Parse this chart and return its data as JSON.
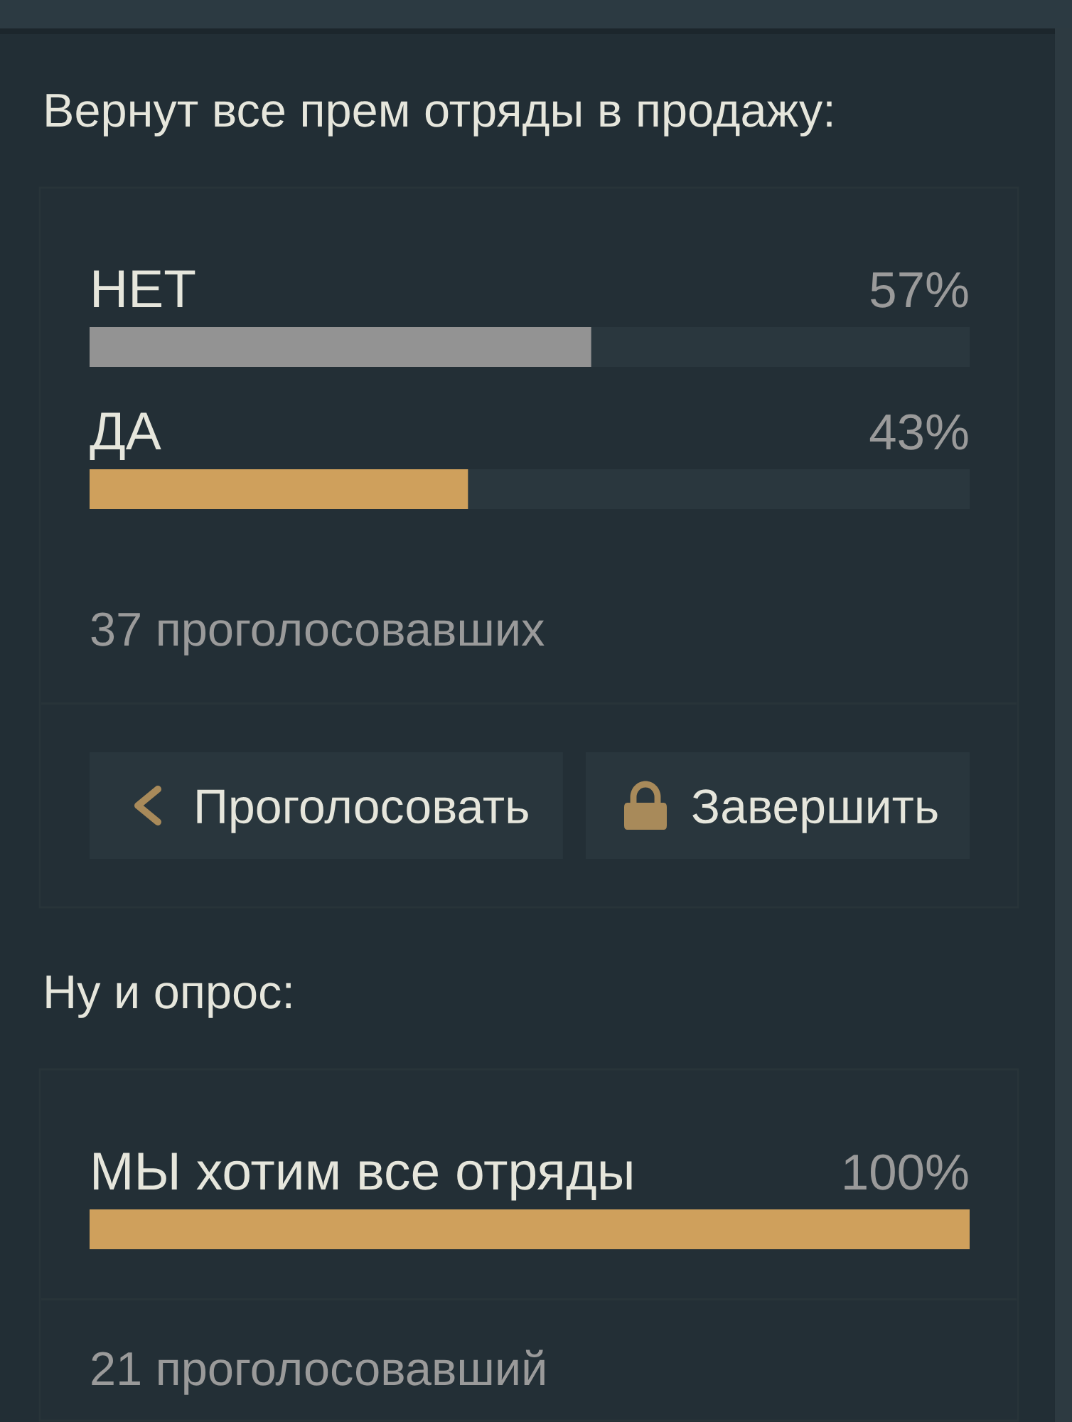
{
  "chart_data": [
    {
      "type": "bar",
      "orientation": "horizontal",
      "title": "Вернут все прем отряды в продажу:",
      "categories": [
        "НЕТ",
        "ДА"
      ],
      "values": [
        57,
        43
      ],
      "colors": [
        "#939393",
        "#cfa05c"
      ],
      "value_labels": [
        "57%",
        "43%"
      ],
      "tick_labels": false,
      "annotations": [
        "37 проголосовавших",
        "Проголосовать",
        "Завершить"
      ]
    },
    {
      "type": "bar",
      "orientation": "horizontal",
      "title": "Ну и опрос:",
      "categories": [
        "МЫ хотим все отряды"
      ],
      "values": [
        100
      ],
      "colors": [
        "#cfa05c"
      ],
      "value_labels": [
        "100%"
      ],
      "tick_labels": false,
      "annotations": [
        "21 проголосовавший"
      ]
    }
  ]
}
